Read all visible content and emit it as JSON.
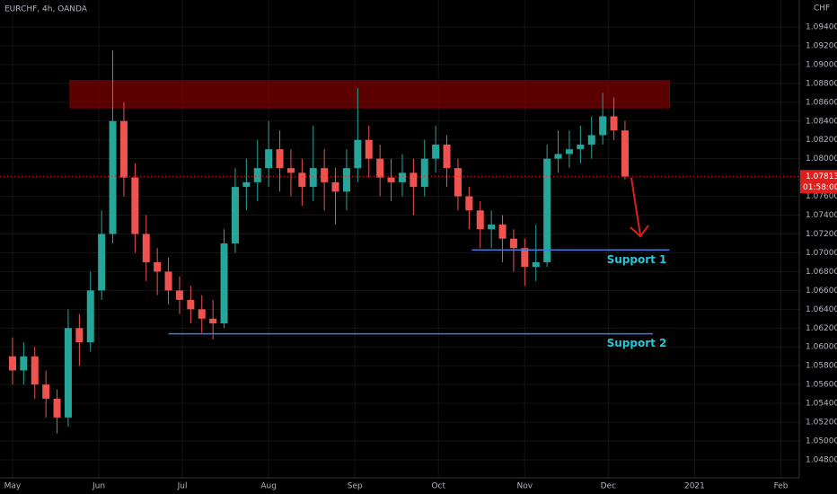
{
  "header": {
    "symbol": "EURCHF, 4h, OANDA",
    "currency": "CHF"
  },
  "chart_data": {
    "type": "candlestick",
    "x": [
      0,
      4,
      8,
      12,
      16,
      20,
      24,
      28,
      32,
      36,
      40,
      44,
      48,
      52,
      56,
      60,
      64,
      68,
      72,
      76,
      80,
      84,
      88,
      92,
      96,
      100,
      104,
      108,
      112,
      116,
      120,
      124,
      128,
      132,
      136,
      140,
      144,
      148,
      152,
      156,
      160,
      164,
      168,
      172,
      176,
      180,
      184,
      188,
      192,
      196,
      200,
      204,
      208,
      212,
      216,
      220
    ],
    "ohlc": [
      [
        1.059,
        1.061,
        1.056,
        1.0575
      ],
      [
        1.0575,
        1.0605,
        1.056,
        1.059
      ],
      [
        1.059,
        1.06,
        1.0545,
        1.056
      ],
      [
        1.056,
        1.0575,
        1.0525,
        1.0545
      ],
      [
        1.0545,
        1.0555,
        1.0508,
        1.0525
      ],
      [
        1.0525,
        1.064,
        1.0515,
        1.062
      ],
      [
        1.062,
        1.0635,
        1.058,
        1.0605
      ],
      [
        1.0605,
        1.068,
        1.0595,
        1.066
      ],
      [
        1.066,
        1.0745,
        1.065,
        1.072
      ],
      [
        1.072,
        1.0915,
        1.071,
        1.084
      ],
      [
        1.084,
        1.086,
        1.076,
        1.078
      ],
      [
        1.078,
        1.0795,
        1.07,
        1.072
      ],
      [
        1.072,
        1.074,
        1.067,
        1.069
      ],
      [
        1.069,
        1.0705,
        1.0655,
        1.068
      ],
      [
        1.068,
        1.0695,
        1.0645,
        1.066
      ],
      [
        1.066,
        1.0675,
        1.0635,
        1.065
      ],
      [
        1.065,
        1.0665,
        1.0625,
        1.064
      ],
      [
        1.064,
        1.0655,
        1.0615,
        1.063
      ],
      [
        1.063,
        1.065,
        1.0608,
        1.0625
      ],
      [
        1.0625,
        1.0725,
        1.062,
        1.071
      ],
      [
        1.071,
        1.079,
        1.07,
        1.077
      ],
      [
        1.077,
        1.08,
        1.0745,
        1.0775
      ],
      [
        1.0775,
        1.082,
        1.0755,
        1.079
      ],
      [
        1.079,
        1.084,
        1.077,
        1.081
      ],
      [
        1.081,
        1.083,
        1.0765,
        1.079
      ],
      [
        1.079,
        1.081,
        1.076,
        1.0785
      ],
      [
        1.0785,
        1.08,
        1.075,
        1.077
      ],
      [
        1.077,
        1.0835,
        1.0755,
        1.079
      ],
      [
        1.079,
        1.081,
        1.0745,
        1.0775
      ],
      [
        1.0775,
        1.079,
        1.073,
        1.0765
      ],
      [
        1.0765,
        1.081,
        1.0745,
        1.079
      ],
      [
        1.079,
        1.0875,
        1.0775,
        1.082
      ],
      [
        1.082,
        1.0835,
        1.078,
        1.08
      ],
      [
        1.08,
        1.0815,
        1.076,
        1.078
      ],
      [
        1.078,
        1.08,
        1.0755,
        1.0775
      ],
      [
        1.0775,
        1.0805,
        1.076,
        1.0785
      ],
      [
        1.0785,
        1.08,
        1.074,
        1.077
      ],
      [
        1.077,
        1.082,
        1.076,
        1.08
      ],
      [
        1.08,
        1.0835,
        1.0785,
        1.0815
      ],
      [
        1.0815,
        1.0825,
        1.077,
        1.079
      ],
      [
        1.079,
        1.08,
        1.0745,
        1.076
      ],
      [
        1.076,
        1.077,
        1.0725,
        1.0745
      ],
      [
        1.0745,
        1.0755,
        1.0705,
        1.0725
      ],
      [
        1.0725,
        1.0745,
        1.0705,
        1.073
      ],
      [
        1.073,
        1.074,
        1.069,
        1.0715
      ],
      [
        1.0715,
        1.0725,
        1.068,
        1.0705
      ],
      [
        1.0705,
        1.0715,
        1.0665,
        1.0685
      ],
      [
        1.0685,
        1.073,
        1.067,
        1.069
      ],
      [
        1.069,
        1.0815,
        1.0685,
        1.08
      ],
      [
        1.08,
        1.083,
        1.0785,
        1.0805
      ],
      [
        1.0805,
        1.083,
        1.079,
        1.081
      ],
      [
        1.081,
        1.0835,
        1.0795,
        1.0815
      ],
      [
        1.0815,
        1.0845,
        1.08,
        1.0825
      ],
      [
        1.0825,
        1.087,
        1.0815,
        1.0845
      ],
      [
        1.0845,
        1.0865,
        1.082,
        1.083
      ],
      [
        1.083,
        1.084,
        1.0778,
        1.0781
      ]
    ],
    "up_color": "#26a69a",
    "down_color": "#ef5350",
    "xlim": [
      -4.5,
      282.6
    ],
    "xticks": [
      {
        "value": 0,
        "label": "May"
      },
      {
        "value": 31,
        "label": "Jun"
      },
      {
        "value": 61,
        "label": "Jul"
      },
      {
        "value": 92,
        "label": "Aug"
      },
      {
        "value": 123,
        "label": "Sep"
      },
      {
        "value": 153,
        "label": "Oct"
      },
      {
        "value": 184,
        "label": "Nov"
      },
      {
        "value": 214,
        "label": "Dec"
      },
      {
        "value": 245,
        "label": "2021"
      },
      {
        "value": 276,
        "label": "Feb"
      }
    ],
    "ylim": [
      1.04609,
      1.09686
    ],
    "yticks": [
      {
        "value": 1.048,
        "label": "1.04800"
      },
      {
        "value": 1.05,
        "label": "1.05000"
      },
      {
        "value": 1.052,
        "label": "1.05200"
      },
      {
        "value": 1.054,
        "label": "1.05400"
      },
      {
        "value": 1.056,
        "label": "1.05600"
      },
      {
        "value": 1.058,
        "label": "1.05800"
      },
      {
        "value": 1.06,
        "label": "1.06000"
      },
      {
        "value": 1.062,
        "label": "1.06200"
      },
      {
        "value": 1.064,
        "label": "1.06400"
      },
      {
        "value": 1.066,
        "label": "1.06600"
      },
      {
        "value": 1.068,
        "label": "1.06800"
      },
      {
        "value": 1.07,
        "label": "1.07000"
      },
      {
        "value": 1.072,
        "label": "1.07200"
      },
      {
        "value": 1.074,
        "label": "1.07400"
      },
      {
        "value": 1.076,
        "label": "1.07600"
      },
      {
        "value": 1.078,
        "label": "1.07800"
      },
      {
        "value": 1.08,
        "label": "1.08000"
      },
      {
        "value": 1.082,
        "label": "1.08200"
      },
      {
        "value": 1.084,
        "label": "1.08400"
      },
      {
        "value": 1.086,
        "label": "1.08600"
      },
      {
        "value": 1.088,
        "label": "1.08800"
      },
      {
        "value": 1.09,
        "label": "1.09000"
      },
      {
        "value": 1.092,
        "label": "1.09200"
      },
      {
        "value": 1.094,
        "label": "1.09400"
      }
    ],
    "grid": true,
    "zones": [
      {
        "xmin": 20.6,
        "xmax": 236,
        "ymin": 1.0854,
        "ymax": 1.0883,
        "color": "#7a0000"
      }
    ],
    "lines": [
      {
        "label": "Support 1",
        "xmin": 165,
        "xmax": 236,
        "y": 1.0703,
        "color": "#3d7de0"
      },
      {
        "label": "Support 2",
        "xmin": 56,
        "xmax": 230,
        "y": 1.0614,
        "color": "#3d7de0"
      }
    ],
    "last_price": {
      "value": 1.07813,
      "label": "1.07813",
      "countdown": "01:58:00",
      "color": "#e01e1e"
    }
  }
}
